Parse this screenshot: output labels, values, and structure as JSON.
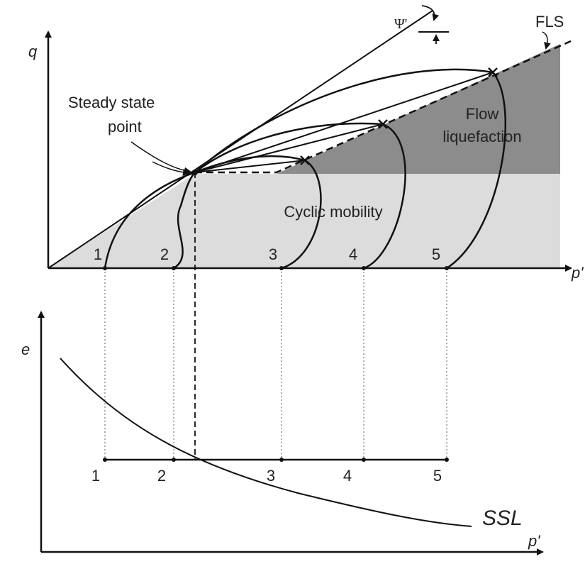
{
  "stress_plot": {
    "y_axis_label": "q",
    "x_axis_label": "p'",
    "angle_label": "Ψ'",
    "line_label": "FLS",
    "steady_state_label": [
      "Steady state",
      "point"
    ],
    "flow_region_label": [
      "Flow",
      "liquefaction"
    ],
    "cyclic_region_label": "Cyclic mobility",
    "state_labels": [
      "1",
      "2",
      "3",
      "4",
      "5"
    ]
  },
  "void_plot": {
    "y_axis_label": "e",
    "x_axis_label": "p'",
    "state_labels": [
      "1",
      "2",
      "3",
      "4",
      "5"
    ],
    "curve_label": "SSL"
  }
}
